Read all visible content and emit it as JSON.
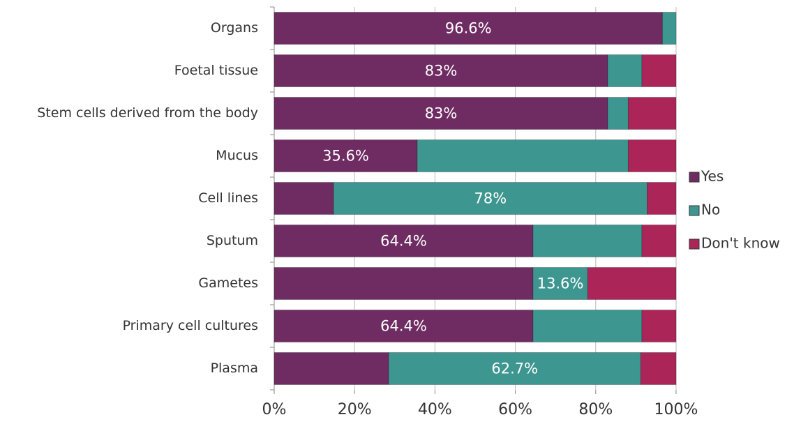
{
  "chart_data": {
    "type": "stacked_bar_horizontal",
    "categories": [
      "Organs",
      "Foetal tissue",
      "Stem cells derived from the body",
      "Mucus",
      "Cell lines",
      "Sputum",
      "Gametes",
      "Primary cell cultures",
      "Plasma"
    ],
    "series": [
      {
        "name": "Yes",
        "color": "#6e2c62",
        "values": [
          96.6,
          83,
          83,
          35.6,
          14.8,
          64.4,
          64.4,
          64.4,
          28.5
        ],
        "value_labels": [
          "96.6%",
          "83%",
          "83%",
          "35.6%",
          null,
          "64.4%",
          null,
          "64.4%",
          null
        ]
      },
      {
        "name": "No",
        "color": "#3e9690",
        "values": [
          3.4,
          8.5,
          5.1,
          52.5,
          78,
          27.1,
          13.6,
          27.1,
          62.7
        ],
        "value_labels": [
          null,
          null,
          null,
          null,
          "78%",
          null,
          "13.6%",
          null,
          "62.7%"
        ]
      },
      {
        "name": "Don't know",
        "color": "#ac2558",
        "values": [
          0,
          8.5,
          11.9,
          11.9,
          7.2,
          8.5,
          22,
          8.5,
          8.8
        ]
      }
    ],
    "xlim": [
      0,
      100
    ],
    "xticks": [
      {
        "value": 0,
        "label": "0%"
      },
      {
        "value": 20,
        "label": "20%"
      },
      {
        "value": 40,
        "label": "40%"
      },
      {
        "value": 60,
        "label": "60%"
      },
      {
        "value": 80,
        "label": "80%"
      },
      {
        "value": 100,
        "label": "100%"
      }
    ],
    "grid": true,
    "legend": "right"
  }
}
